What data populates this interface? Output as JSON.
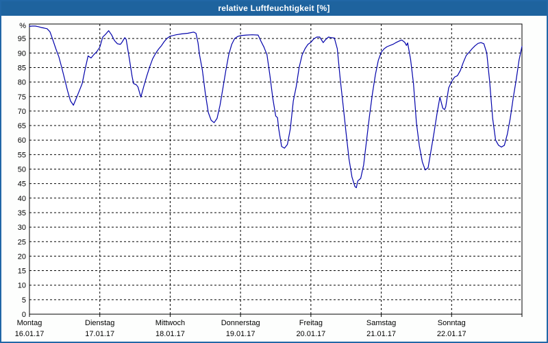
{
  "window": {
    "title": "relative Luftfeuchtigkeit [%]"
  },
  "colors": {
    "titlebar": "#1e639e",
    "frame": "#2167a6",
    "plot_background": "#ffffff",
    "grid": "#000000",
    "axis": "#000000",
    "line": "#0000aa",
    "text": "#000000",
    "title_text": "#ffffff"
  },
  "chart_data": {
    "type": "line",
    "title": "relative Luftfeuchtigkeit [%]",
    "ylabel": "%",
    "y_unit_label": "%",
    "ylim": [
      0,
      100
    ],
    "y_tick_step": 5,
    "y_tick_min": 0,
    "y_tick_max": 95,
    "x_hours_total": 168,
    "grid": "dashed",
    "legend_position": "none",
    "x_tick_days": [
      {
        "name": "Montag",
        "date": "16.01.17"
      },
      {
        "name": "Dienstag",
        "date": "17.01.17"
      },
      {
        "name": "Mittwoch",
        "date": "18.01.17"
      },
      {
        "name": "Donnerstag",
        "date": "19.01.17"
      },
      {
        "name": "Freitag",
        "date": "20.01.17"
      },
      {
        "name": "Samstag",
        "date": "21.01.17"
      },
      {
        "name": "Sonntag",
        "date": "22.01.17"
      }
    ],
    "series": [
      {
        "name": "relative Luftfeuchtigkeit [%]",
        "x_unit": "hours_since_mon_00",
        "points": [
          [
            0,
            99.2
          ],
          [
            1,
            99.3
          ],
          [
            2,
            99.3
          ],
          [
            3,
            99.1
          ],
          [
            4,
            98.8
          ],
          [
            5,
            98.6
          ],
          [
            6,
            98.4
          ],
          [
            7,
            97.3
          ],
          [
            8,
            94.5
          ],
          [
            9,
            91.5
          ],
          [
            10,
            88.8
          ],
          [
            11,
            85
          ],
          [
            12,
            81
          ],
          [
            13,
            77
          ],
          [
            14,
            73.5
          ],
          [
            15,
            72
          ],
          [
            16,
            74.5
          ],
          [
            17,
            77
          ],
          [
            18,
            79.5
          ],
          [
            19,
            84.5
          ],
          [
            20,
            89
          ],
          [
            21,
            88.3
          ],
          [
            22,
            89.5
          ],
          [
            23,
            90.5
          ],
          [
            24,
            92
          ],
          [
            25,
            95.5
          ],
          [
            26,
            96.5
          ],
          [
            27,
            97.7
          ],
          [
            28,
            96.3
          ],
          [
            29,
            94.3
          ],
          [
            30,
            93.2
          ],
          [
            31,
            93
          ],
          [
            31.5,
            93.6
          ],
          [
            32.5,
            95.3
          ],
          [
            33,
            94.7
          ],
          [
            34,
            88.5
          ],
          [
            35,
            82
          ],
          [
            35.5,
            79.5
          ],
          [
            36.5,
            79
          ],
          [
            37,
            78.3
          ],
          [
            38,
            74.8
          ],
          [
            39,
            78.5
          ],
          [
            40,
            82
          ],
          [
            41,
            85.2
          ],
          [
            42,
            88
          ],
          [
            43,
            89.8
          ],
          [
            44,
            91.3
          ],
          [
            45,
            92.5
          ],
          [
            46,
            94
          ],
          [
            47,
            95.1
          ],
          [
            48,
            95.8
          ],
          [
            50,
            96.3
          ],
          [
            52,
            96.6
          ],
          [
            54,
            96.8
          ],
          [
            56,
            97.2
          ],
          [
            56.8,
            96.8
          ],
          [
            57.5,
            93.5
          ],
          [
            58,
            89.5
          ],
          [
            59,
            84
          ],
          [
            60,
            76
          ],
          [
            61,
            69.5
          ],
          [
            62,
            66.8
          ],
          [
            63,
            66
          ],
          [
            64,
            67.5
          ],
          [
            65,
            72
          ],
          [
            66,
            78
          ],
          [
            67,
            84
          ],
          [
            68,
            89.5
          ],
          [
            69,
            93
          ],
          [
            70,
            95
          ],
          [
            71,
            95.7
          ],
          [
            72,
            96
          ],
          [
            74,
            96.2
          ],
          [
            76,
            96.3
          ],
          [
            78,
            96.2
          ],
          [
            79,
            94
          ],
          [
            80,
            92
          ],
          [
            80.6,
            90.5
          ],
          [
            81,
            89.5
          ],
          [
            82,
            82.5
          ],
          [
            83,
            74.5
          ],
          [
            84,
            68.3
          ],
          [
            84.6,
            67.7
          ],
          [
            85,
            64
          ],
          [
            86,
            57.8
          ],
          [
            87,
            57.2
          ],
          [
            88,
            58.5
          ],
          [
            89,
            64
          ],
          [
            90,
            73.5
          ],
          [
            91,
            78.5
          ],
          [
            92,
            85
          ],
          [
            93,
            89.3
          ],
          [
            94,
            91.5
          ],
          [
            95,
            93
          ],
          [
            96,
            93.7
          ],
          [
            97,
            94.9
          ],
          [
            98,
            95.5
          ],
          [
            99,
            95.5
          ],
          [
            100.2,
            93.6
          ],
          [
            101,
            94.6
          ],
          [
            102,
            95.5
          ],
          [
            103,
            95.3
          ],
          [
            104,
            95.2
          ],
          [
            105,
            91.5
          ],
          [
            106,
            81
          ],
          [
            107,
            72
          ],
          [
            108,
            62.5
          ],
          [
            109,
            53.5
          ],
          [
            110,
            47.3
          ],
          [
            111,
            44
          ],
          [
            111.5,
            43.6
          ],
          [
            112,
            45.9
          ],
          [
            113,
            46.8
          ],
          [
            114,
            51.5
          ],
          [
            115,
            60
          ],
          [
            116,
            68.5
          ],
          [
            117,
            76
          ],
          [
            118,
            82.5
          ],
          [
            119,
            87.5
          ],
          [
            120,
            90.3
          ],
          [
            121,
            91.5
          ],
          [
            122,
            92.2
          ],
          [
            124,
            93
          ],
          [
            125,
            93.6
          ],
          [
            126.5,
            94.3
          ],
          [
            127,
            94.5
          ],
          [
            128,
            93.7
          ],
          [
            128.6,
            92.6
          ],
          [
            129,
            93.5
          ],
          [
            130,
            87.8
          ],
          [
            131,
            79.5
          ],
          [
            132,
            66
          ],
          [
            133,
            58
          ],
          [
            134,
            52.5
          ],
          [
            135,
            49.7
          ],
          [
            136,
            50.5
          ],
          [
            137,
            56.5
          ],
          [
            138,
            62.5
          ],
          [
            139,
            69
          ],
          [
            140,
            74.8
          ],
          [
            141,
            71
          ],
          [
            141.6,
            70.5
          ],
          [
            142,
            71.5
          ],
          [
            143,
            78
          ],
          [
            144,
            80.2
          ],
          [
            145,
            81.7
          ],
          [
            146,
            82.2
          ],
          [
            147,
            84
          ],
          [
            148,
            86.8
          ],
          [
            149,
            89.2
          ],
          [
            150,
            90.3
          ],
          [
            151,
            91.5
          ],
          [
            152,
            92.5
          ],
          [
            153,
            93.3
          ],
          [
            154,
            93.6
          ],
          [
            155,
            93.2
          ],
          [
            156,
            90
          ],
          [
            157,
            80
          ],
          [
            158,
            67.5
          ],
          [
            159,
            60
          ],
          [
            160,
            58.2
          ],
          [
            161,
            57.6
          ],
          [
            162,
            58.2
          ],
          [
            163,
            62
          ],
          [
            164,
            67.5
          ],
          [
            165,
            74.5
          ],
          [
            166,
            80.5
          ],
          [
            167,
            87.5
          ],
          [
            168,
            92.3
          ]
        ]
      }
    ]
  }
}
